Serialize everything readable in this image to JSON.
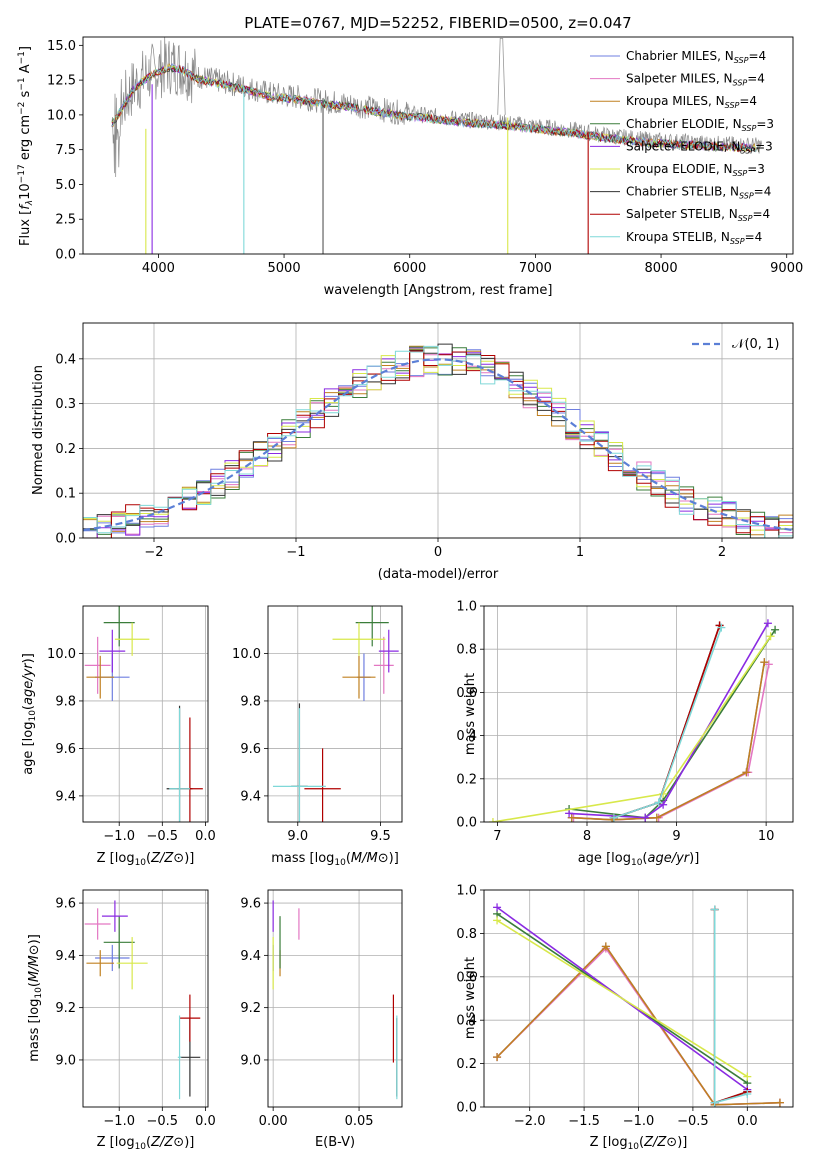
{
  "figure_title": "PLATE=0767, MJD=52252, FIBERID=0500, z=0.047",
  "colors": {
    "Chabrier MILES": "#6f7fe0",
    "Salpeter MILES": "#e377c2",
    "Kroupa MILES": "#c08020",
    "Chabrier ELODIE": "#3a7d3a",
    "Salpeter ELODIE": "#8a2be2",
    "Kroupa ELODIE": "#d8e84a",
    "Chabrier STELIB": "#333333",
    "Salpeter STELIB": "#b00000",
    "Kroupa STELIB": "#7fd8d8"
  },
  "chart_data": [
    {
      "id": "spectrum",
      "type": "line",
      "title": "PLATE=0767, MJD=52252, FIBERID=0500, z=0.047",
      "xlabel": "wavelength [Angstrom, rest frame]",
      "ylabel": "Flux [f_λ 10^-17 erg cm^-2 s^-1 A^-1]",
      "xlim": [
        3400,
        9050
      ],
      "ylim": [
        0,
        15.6
      ],
      "xticks": [
        4000,
        5000,
        6000,
        7000,
        8000,
        9000
      ],
      "yticks": [
        0.0,
        2.5,
        5.0,
        7.5,
        10.0,
        12.5,
        15.0
      ],
      "grid": false,
      "legend_position": "top-right",
      "data_spectrum": {
        "x": [
          3630,
          3700,
          3800,
          3900,
          4000,
          4100,
          4200,
          4300,
          4400,
          4500,
          4700,
          4900,
          5100,
          5300,
          5500,
          5700,
          5900,
          6100,
          6300,
          6500,
          6700,
          6900,
          7100,
          7300,
          7500,
          7700,
          7900,
          8100,
          8300,
          8500,
          8800
        ],
        "y": [
          9.5,
          10.5,
          12.0,
          12.8,
          13.3,
          13.6,
          13.4,
          12.8,
          12.6,
          12.4,
          12.0,
          11.5,
          11.3,
          11.0,
          10.8,
          10.5,
          10.2,
          10.0,
          9.8,
          9.6,
          9.5,
          9.3,
          9.1,
          8.9,
          8.6,
          8.4,
          8.2,
          8.1,
          8.0,
          7.9,
          7.8
        ]
      },
      "series": [
        {
          "name": "Chabrier MILES",
          "nssp": "4"
        },
        {
          "name": "Salpeter MILES",
          "nssp": "4"
        },
        {
          "name": "Kroupa MILES",
          "nssp": "4"
        },
        {
          "name": "Chabrier ELODIE",
          "nssp": "3"
        },
        {
          "name": "Salpeter ELODIE",
          "nssp": "3"
        },
        {
          "name": "Kroupa ELODIE",
          "nssp": "3"
        },
        {
          "name": "Chabrier STELIB",
          "nssp": "4"
        },
        {
          "name": "Salpeter STELIB",
          "nssp": "4"
        },
        {
          "name": "Kroupa STELIB",
          "nssp": "4"
        }
      ]
    },
    {
      "id": "residuals",
      "type": "line",
      "xlabel": "(data-model)/error",
      "ylabel": "Normed distribution",
      "xlim": [
        -2.5,
        2.5
      ],
      "ylim": [
        0,
        0.48
      ],
      "xticks": [
        -2,
        -1,
        0,
        1,
        2
      ],
      "yticks": [
        0.0,
        0.1,
        0.2,
        0.3,
        0.4
      ],
      "grid": true,
      "legend": "𝒩(0, 1)",
      "legend_position": "top-right",
      "bin_width": 0.1
    },
    {
      "id": "age-vs-Z",
      "type": "scatter",
      "xlabel": "Z [log10(Z/Z⊙)]",
      "ylabel": "age  [log10(age/yr)]",
      "xlim": [
        -1.42,
        0.03
      ],
      "ylim": [
        9.29,
        10.2
      ],
      "xticks": [
        -1.0,
        -0.5,
        0.0
      ],
      "yticks": [
        9.4,
        9.6,
        9.8,
        10.0
      ],
      "grid": true,
      "points": [
        {
          "series": "Chabrier MILES",
          "x": -1.08,
          "y": 9.9,
          "xerr": 0.2,
          "yerr": 0.1
        },
        {
          "series": "Salpeter MILES",
          "x": -1.25,
          "y": 9.95,
          "xerr": 0.15,
          "yerr": 0.12
        },
        {
          "series": "Kroupa MILES",
          "x": -1.22,
          "y": 9.9,
          "xerr": 0.16,
          "yerr": 0.09
        },
        {
          "series": "Chabrier ELODIE",
          "x": -1.0,
          "y": 10.13,
          "xerr": 0.18,
          "yerr": 0.1
        },
        {
          "series": "Salpeter ELODIE",
          "x": -1.08,
          "y": 10.01,
          "xerr": 0.15,
          "yerr": 0.09
        },
        {
          "series": "Kroupa ELODIE",
          "x": -0.85,
          "y": 10.06,
          "xerr": 0.2,
          "yerr": 0.07
        },
        {
          "series": "Chabrier STELIB",
          "x": -0.3,
          "y": 9.43,
          "xerr": 0.15,
          "yerr": 0.35
        },
        {
          "series": "Salpeter STELIB",
          "x": -0.18,
          "y": 9.43,
          "xerr": 0.15,
          "yerr": 0.3
        },
        {
          "series": "Kroupa STELIB",
          "x": -0.3,
          "y": 9.43,
          "xerr": 0.12,
          "yerr": 0.34
        }
      ]
    },
    {
      "id": "age-vs-mass",
      "type": "scatter",
      "xlabel": "mass [log10(M/M⊙)]",
      "yticks": [
        9.4,
        9.6,
        9.8,
        10.0
      ],
      "xlim": [
        8.82,
        9.63
      ],
      "ylim": [
        9.29,
        10.2
      ],
      "xticks": [
        9.0,
        9.5
      ],
      "grid": true,
      "points": [
        {
          "series": "Chabrier MILES",
          "x": 9.4,
          "y": 9.9,
          "xerr": 0.04,
          "yerr": 0.1
        },
        {
          "series": "Salpeter MILES",
          "x": 9.52,
          "y": 9.95,
          "xerr": 0.06,
          "yerr": 0.12
        },
        {
          "series": "Kroupa MILES",
          "x": 9.37,
          "y": 9.9,
          "xerr": 0.1,
          "yerr": 0.09
        },
        {
          "series": "Chabrier ELODIE",
          "x": 9.45,
          "y": 10.13,
          "xerr": 0.1,
          "yerr": 0.1
        },
        {
          "series": "Salpeter ELODIE",
          "x": 9.55,
          "y": 10.01,
          "xerr": 0.06,
          "yerr": 0.09
        },
        {
          "series": "Kroupa ELODIE",
          "x": 9.37,
          "y": 10.06,
          "xerr": 0.16,
          "yerr": 0.07
        },
        {
          "series": "Chabrier STELIB",
          "x": 9.01,
          "y": 9.44,
          "xerr": 0.05,
          "yerr": 0.35
        },
        {
          "series": "Salpeter STELIB",
          "x": 9.15,
          "y": 9.43,
          "xerr": 0.11,
          "yerr": 0.17
        },
        {
          "series": "Kroupa STELIB",
          "x": 9.01,
          "y": 9.44,
          "xerr": 0.16,
          "yerr": 0.33
        }
      ]
    },
    {
      "id": "mass-weight-vs-age",
      "type": "line",
      "xlabel": "age  [log10(age/yr)]",
      "ylabel": "mass weight",
      "xlim": [
        6.85,
        10.3
      ],
      "ylim": [
        0,
        1.0
      ],
      "xticks": [
        7,
        8,
        9,
        10
      ],
      "yticks": [
        0.0,
        0.2,
        0.4,
        0.6,
        0.8,
        1.0
      ],
      "grid": true,
      "series": [
        {
          "name": "Chabrier MILES",
          "x": [
            7.83,
            8.28,
            8.78,
            9.78,
            9.98
          ],
          "y": [
            0.02,
            0.01,
            0.02,
            0.23,
            0.74
          ]
        },
        {
          "name": "Salpeter MILES",
          "x": [
            7.85,
            8.3,
            8.8,
            9.8,
            10.03
          ],
          "y": [
            0.02,
            0.01,
            0.02,
            0.23,
            0.73
          ]
        },
        {
          "name": "Kroupa MILES",
          "x": [
            7.83,
            8.28,
            8.78,
            9.78,
            9.98
          ],
          "y": [
            0.02,
            0.01,
            0.02,
            0.23,
            0.74
          ]
        },
        {
          "name": "Chabrier ELODIE",
          "x": [
            7.8,
            8.65,
            8.85,
            10.1
          ],
          "y": [
            0.06,
            0.02,
            0.1,
            0.89
          ]
        },
        {
          "name": "Salpeter ELODIE",
          "x": [
            7.8,
            8.65,
            8.85,
            10.02
          ],
          "y": [
            0.04,
            0.02,
            0.08,
            0.92
          ]
        },
        {
          "name": "Kroupa ELODIE",
          "x": [
            6.95,
            8.85,
            10.05
          ],
          "y": [
            0.0,
            0.13,
            0.86
          ]
        },
        {
          "name": "Chabrier STELIB",
          "x": [
            8.3,
            8.8,
            9.48
          ],
          "y": [
            0.02,
            0.09,
            0.91
          ]
        },
        {
          "name": "Salpeter STELIB",
          "x": [
            8.3,
            8.8,
            9.48
          ],
          "y": [
            0.02,
            0.09,
            0.91
          ]
        },
        {
          "name": "Kroupa STELIB",
          "x": [
            8.3,
            8.8,
            9.5
          ],
          "y": [
            0.02,
            0.09,
            0.9
          ]
        }
      ]
    },
    {
      "id": "mass-vs-Z",
      "type": "scatter",
      "xlabel": "Z [log10(Z/Z⊙)]",
      "ylabel": "mass [log10(M/M⊙)]",
      "xlim": [
        -1.42,
        0.03
      ],
      "ylim": [
        8.82,
        9.65
      ],
      "xticks": [
        -1.0,
        -0.5,
        0.0
      ],
      "yticks": [
        9.0,
        9.2,
        9.4,
        9.6
      ],
      "grid": true,
      "points": [
        {
          "series": "Chabrier MILES",
          "x": -1.08,
          "y": 9.39,
          "xerr": 0.2,
          "yerr": 0.05
        },
        {
          "series": "Salpeter MILES",
          "x": -1.25,
          "y": 9.52,
          "xerr": 0.15,
          "yerr": 0.06
        },
        {
          "series": "Kroupa MILES",
          "x": -1.22,
          "y": 9.37,
          "xerr": 0.16,
          "yerr": 0.05
        },
        {
          "series": "Chabrier ELODIE",
          "x": -1.0,
          "y": 9.45,
          "xerr": 0.18,
          "yerr": 0.1
        },
        {
          "series": "Salpeter ELODIE",
          "x": -1.05,
          "y": 9.55,
          "xerr": 0.15,
          "yerr": 0.06
        },
        {
          "series": "Kroupa ELODIE",
          "x": -0.85,
          "y": 9.37,
          "xerr": 0.18,
          "yerr": 0.1
        },
        {
          "series": "Chabrier STELIB",
          "x": -0.18,
          "y": 9.01,
          "xerr": 0.12,
          "yerr": 0.15
        },
        {
          "series": "Salpeter STELIB",
          "x": -0.18,
          "y": 9.16,
          "xerr": 0.12,
          "yerr": 0.09
        },
        {
          "series": "Kroupa STELIB",
          "x": -0.3,
          "y": 9.01,
          "xerr": 0.02,
          "yerr": 0.16
        }
      ]
    },
    {
      "id": "mass-vs-ebv",
      "type": "scatter",
      "xlabel": "E(B-V)",
      "xlim": [
        -0.003,
        0.075
      ],
      "ylim": [
        8.82,
        9.65
      ],
      "xticks": [
        0.0,
        0.05
      ],
      "yticks": [
        9.0,
        9.2,
        9.4,
        9.6
      ],
      "grid": true,
      "points": [
        {
          "series": "Chabrier MILES",
          "x": 0.0,
          "y": 9.39,
          "xerr": 0.0,
          "yerr": 0.05
        },
        {
          "series": "Salpeter MILES",
          "x": 0.015,
          "y": 9.52,
          "xerr": 0.0,
          "yerr": 0.06
        },
        {
          "series": "Kroupa MILES",
          "x": 0.004,
          "y": 9.37,
          "xerr": 0.0,
          "yerr": 0.05
        },
        {
          "series": "Chabrier ELODIE",
          "x": 0.004,
          "y": 9.45,
          "xerr": 0.0,
          "yerr": 0.1
        },
        {
          "series": "Salpeter ELODIE",
          "x": 0.0,
          "y": 9.55,
          "xerr": 0.0,
          "yerr": 0.06
        },
        {
          "series": "Kroupa ELODIE",
          "x": 0.0,
          "y": 9.37,
          "xerr": 0.0,
          "yerr": 0.1
        },
        {
          "series": "Chabrier STELIB",
          "x": 0.072,
          "y": 9.01,
          "xerr": 0.0,
          "yerr": 0.15
        },
        {
          "series": "Salpeter STELIB",
          "x": 0.07,
          "y": 9.12,
          "xerr": 0.0,
          "yerr": 0.13
        },
        {
          "series": "Kroupa STELIB",
          "x": 0.072,
          "y": 9.01,
          "xerr": 0.0,
          "yerr": 0.16
        }
      ]
    },
    {
      "id": "mass-weight-vs-Z",
      "type": "line",
      "xlabel": "Z [log10(Z/Z⊙)]",
      "ylabel": "mass weight",
      "xlim": [
        -2.42,
        0.42
      ],
      "ylim": [
        0,
        1.0
      ],
      "xticks": [
        -2.0,
        -1.5,
        -1.0,
        -0.5,
        0.0
      ],
      "yticks": [
        0.0,
        0.2,
        0.4,
        0.6,
        0.8,
        1.0
      ],
      "grid": true,
      "series": [
        {
          "name": "Chabrier MILES",
          "x": [
            -2.3,
            -1.3,
            -0.3,
            0.3
          ],
          "y": [
            0.23,
            0.74,
            0.01,
            0.02
          ]
        },
        {
          "name": "Salpeter MILES",
          "x": [
            -2.3,
            -1.3,
            -0.3,
            0.3
          ],
          "y": [
            0.23,
            0.73,
            0.01,
            0.02
          ]
        },
        {
          "name": "Kroupa MILES",
          "x": [
            -2.3,
            -1.3,
            -0.3,
            0.3
          ],
          "y": [
            0.23,
            0.74,
            0.01,
            0.02
          ]
        },
        {
          "name": "Chabrier ELODIE",
          "x": [
            -2.3,
            0.0
          ],
          "y": [
            0.89,
            0.11
          ]
        },
        {
          "name": "Salpeter ELODIE",
          "x": [
            -2.3,
            0.0
          ],
          "y": [
            0.92,
            0.08
          ]
        },
        {
          "name": "Kroupa ELODIE",
          "x": [
            -2.3,
            0.0
          ],
          "y": [
            0.86,
            0.14
          ]
        },
        {
          "name": "Chabrier STELIB",
          "x": [
            -0.3,
            -0.3,
            0.0
          ],
          "y": [
            0.91,
            0.02,
            0.07
          ]
        },
        {
          "name": "Salpeter STELIB",
          "x": [
            -0.3,
            -0.3,
            0.0
          ],
          "y": [
            0.91,
            0.02,
            0.07
          ]
        },
        {
          "name": "Kroupa STELIB",
          "x": [
            -0.3,
            -0.3,
            0.0
          ],
          "y": [
            0.91,
            0.02,
            0.06
          ]
        }
      ]
    }
  ]
}
